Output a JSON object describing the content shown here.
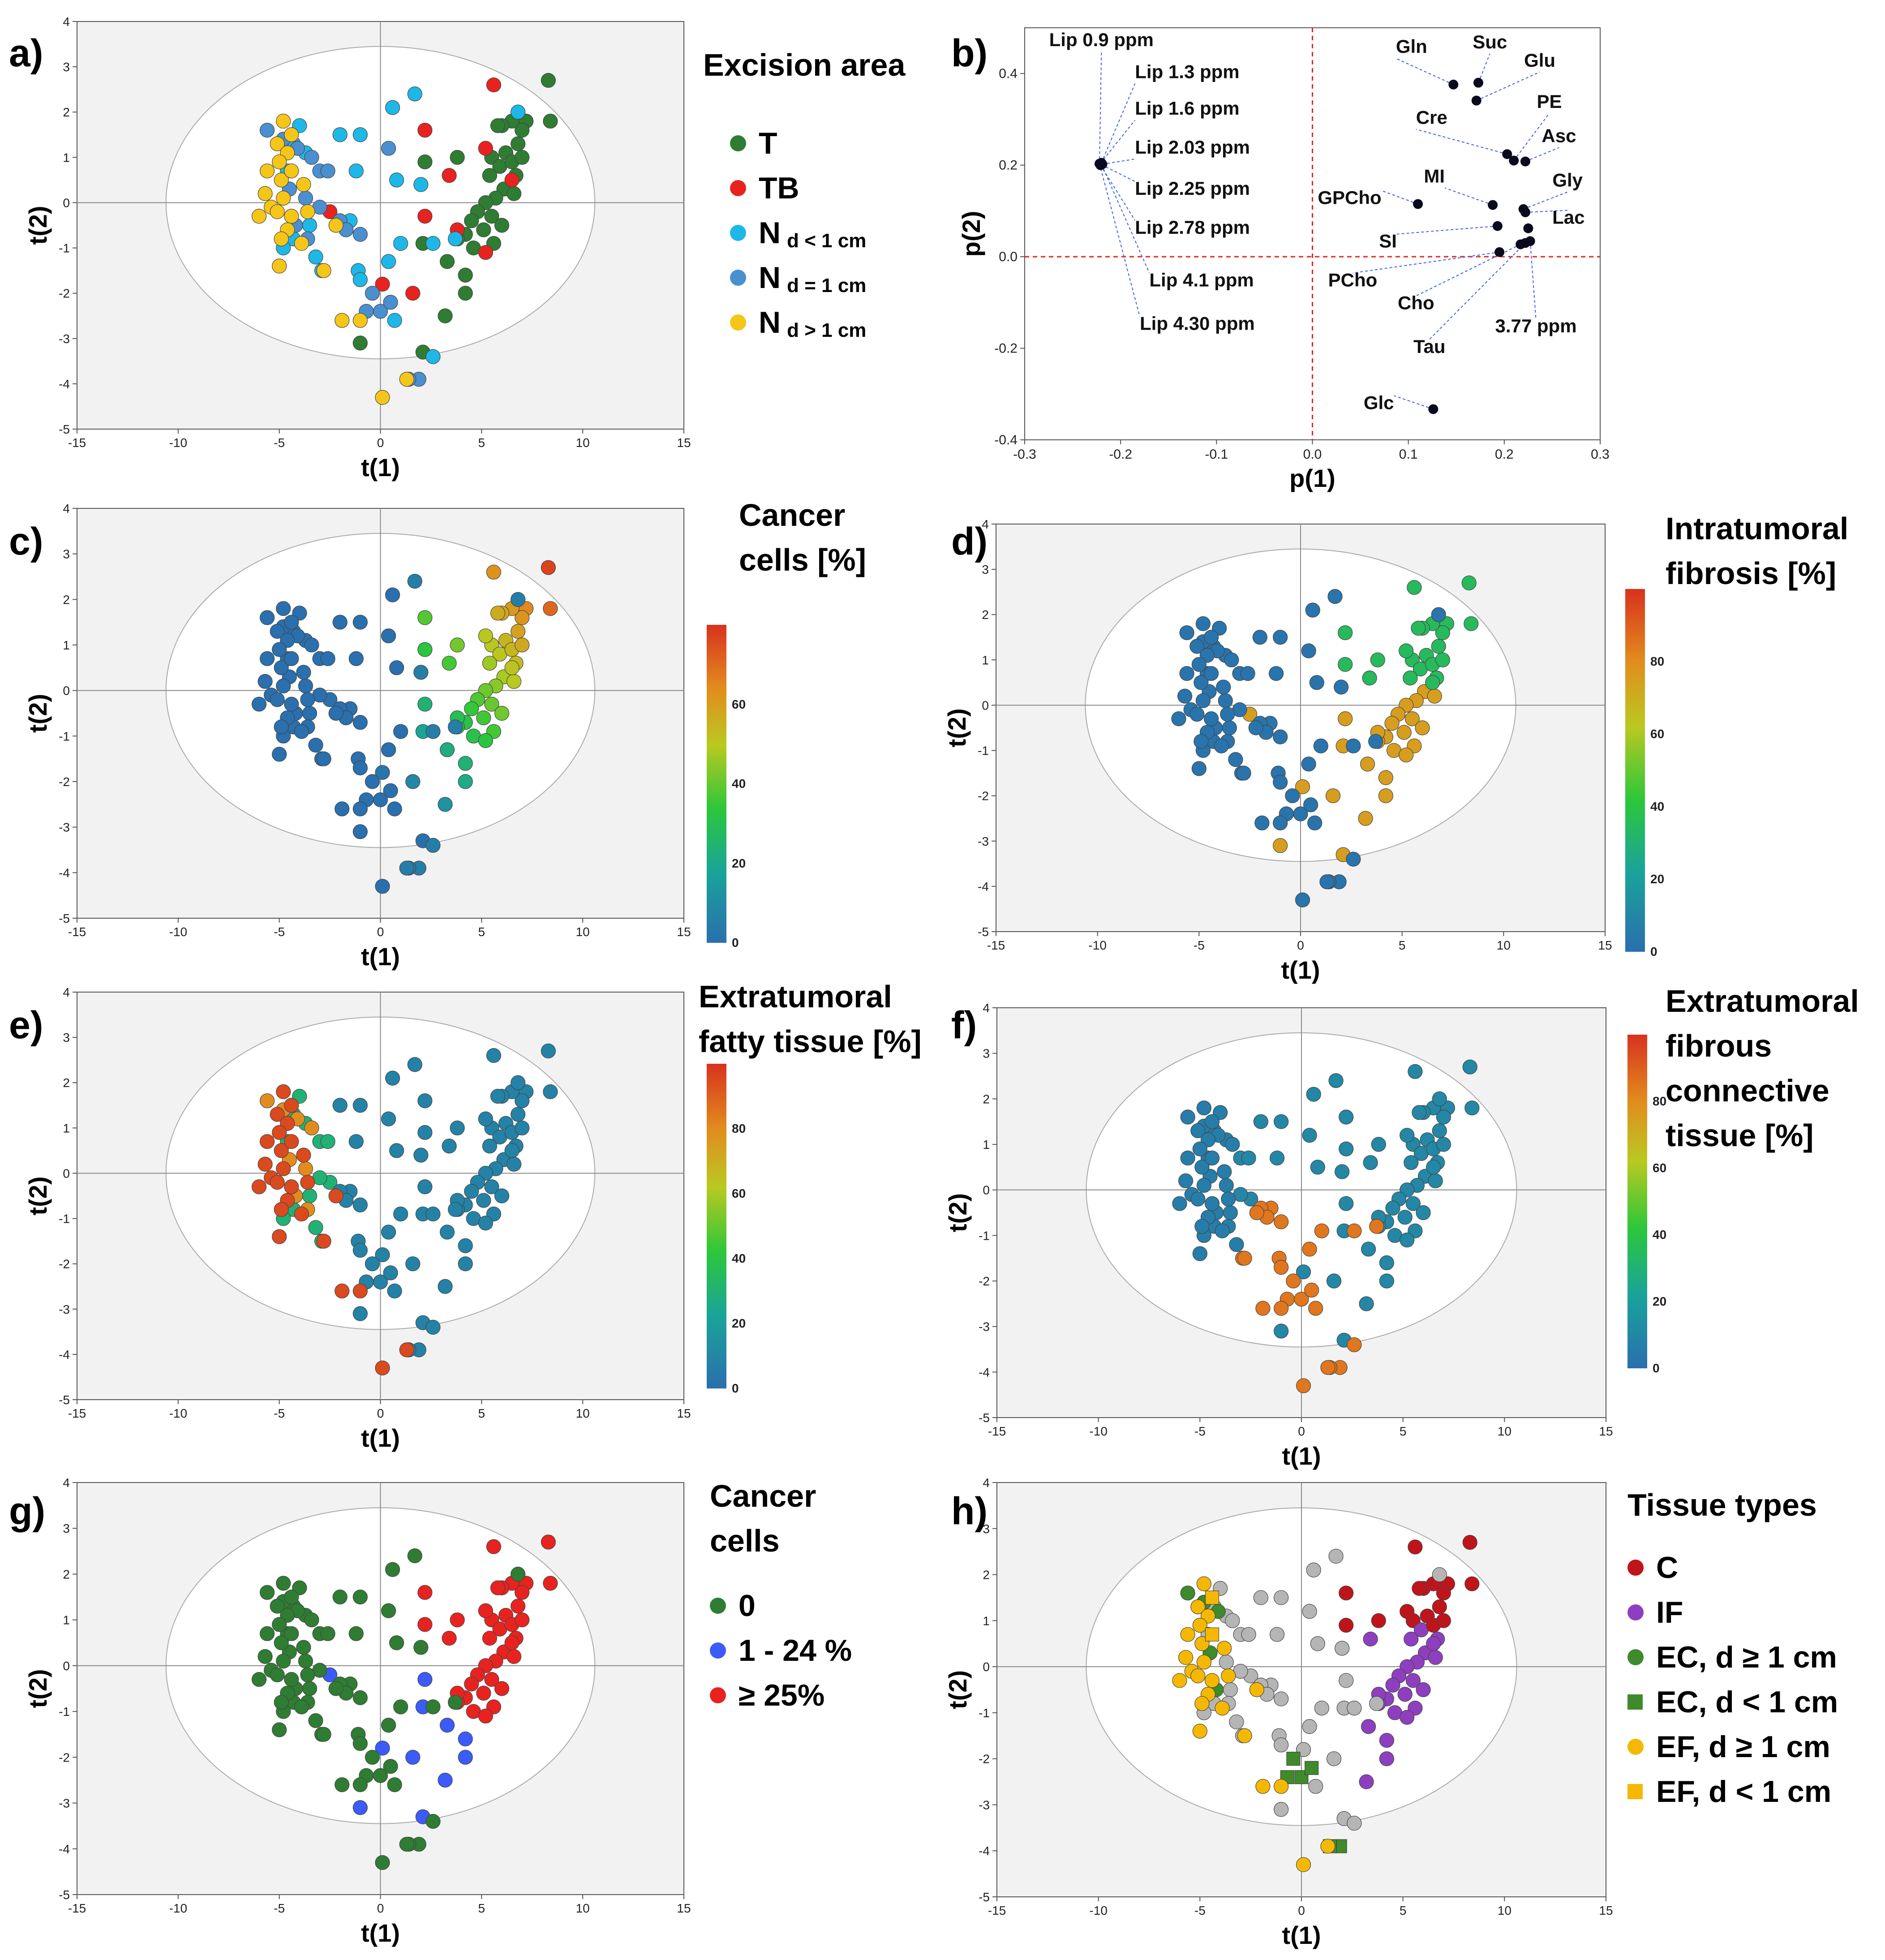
{
  "colors": {
    "T": "#2e7d32",
    "TB": "#e8231f",
    "Nlt1": "#1db8e8",
    "Neq1": "#4a8fd0",
    "Ngt1": "#f5c518",
    "g0": "#2e7d32",
    "g1": "#3b5bfa",
    "g25": "#e8231f",
    "C": "#c0141b",
    "IF": "#8e3fbf",
    "EC": "#3f8a2b",
    "EF": "#f5b800",
    "other": "#b5b5b5"
  },
  "panels": {
    "a": {
      "label": "a)",
      "legend_title": "Excision area",
      "items": [
        {
          "main": "T",
          "sub": ""
        },
        {
          "main": "TB",
          "sub": ""
        },
        {
          "main": "N",
          "sub": "d < 1 cm"
        },
        {
          "main": "N",
          "sub": "d = 1 cm"
        },
        {
          "main": "N",
          "sub": "d > 1 cm"
        }
      ]
    },
    "b": {
      "label": "b)"
    },
    "c": {
      "label": "c)",
      "legend_title": "Cancer\ncells [%]"
    },
    "d": {
      "label": "d)",
      "legend_title": "Intratumoral\nfibrosis [%]"
    },
    "e": {
      "label": "e)",
      "legend_title": "Extratumoral\nfatty tissue [%]"
    },
    "f": {
      "label": "f)",
      "legend_title": "Extratumoral\nfibrous\nconnective\ntissue [%]"
    },
    "g": {
      "label": "g)",
      "legend_title": "Cancer\ncells",
      "items": [
        "0",
        "1 - 24 %",
        "≥ 25%"
      ]
    },
    "h": {
      "label": "h)",
      "legend_title": "Tissue types",
      "items": [
        "C",
        "IF",
        "EC, d ≥ 1 cm",
        "EC, d < 1 cm",
        "EF, d ≥ 1 cm",
        "EF, d < 1 cm"
      ]
    }
  },
  "chart_data": [
    {
      "id": "a",
      "type": "scatter",
      "title": "",
      "xlabel": "t(1)",
      "ylabel": "t(2)",
      "xlim": [
        -15,
        15
      ],
      "ylim": [
        -5,
        4
      ],
      "xticks": [
        -15,
        -10,
        -5,
        0,
        5,
        10,
        15
      ],
      "yticks": [
        -5,
        -4,
        -3,
        -2,
        -1,
        0,
        1,
        2,
        3,
        4
      ],
      "ellipse": {
        "rx": 10.6,
        "ry": 3.45
      },
      "series": [
        {
          "name": "T",
          "color_key": "T",
          "points": [
            [
              8.3,
              2.7
            ],
            [
              8.4,
              1.8
            ],
            [
              7.2,
              1.8
            ],
            [
              7.0,
              1.6
            ],
            [
              6.5,
              1.8
            ],
            [
              6.0,
              1.7
            ],
            [
              5.8,
              1.7
            ],
            [
              6.8,
              1.3
            ],
            [
              6.2,
              1.1
            ],
            [
              5.5,
              1.0
            ],
            [
              5.9,
              0.8
            ],
            [
              6.5,
              0.9
            ],
            [
              7.0,
              1.0
            ],
            [
              6.7,
              0.6
            ],
            [
              5.4,
              0.6
            ],
            [
              6.1,
              0.3
            ],
            [
              5.7,
              0.1
            ],
            [
              6.6,
              0.2
            ],
            [
              5.2,
              0.0
            ],
            [
              4.8,
              -0.2
            ],
            [
              5.5,
              -0.3
            ],
            [
              6.0,
              -0.5
            ],
            [
              4.5,
              -0.4
            ],
            [
              4.2,
              -0.7
            ],
            [
              5.1,
              -0.6
            ],
            [
              3.8,
              -0.8
            ],
            [
              4.6,
              -1.0
            ],
            [
              5.6,
              -0.9
            ],
            [
              2.2,
              0.9
            ],
            [
              2.1,
              -0.9
            ],
            [
              3.8,
              1.0
            ],
            [
              3.3,
              -1.3
            ],
            [
              4.2,
              -1.6
            ],
            [
              4.2,
              -2.0
            ],
            [
              3.2,
              -2.5
            ],
            [
              -1.0,
              -3.1
            ],
            [
              2.1,
              -3.3
            ]
          ]
        },
        {
          "name": "TB",
          "color_key": "TB",
          "points": [
            [
              5.6,
              2.6
            ],
            [
              2.2,
              1.6
            ],
            [
              5.2,
              1.2
            ],
            [
              6.5,
              0.5
            ],
            [
              3.4,
              0.6
            ],
            [
              2.2,
              -0.3
            ],
            [
              3.8,
              -0.6
            ],
            [
              5.2,
              -1.1
            ],
            [
              0.1,
              -1.8
            ],
            [
              1.6,
              -2.0
            ],
            [
              -2.5,
              -0.2
            ]
          ]
        },
        {
          "name": "N d<1",
          "color_key": "Nlt1",
          "points": [
            [
              1.7,
              2.4
            ],
            [
              0.6,
              2.1
            ],
            [
              -4.0,
              1.7
            ],
            [
              -2.0,
              1.5
            ],
            [
              -1.0,
              1.5
            ],
            [
              -4.3,
              1.3
            ],
            [
              -3.7,
              1.1
            ],
            [
              -1.2,
              0.7
            ],
            [
              2.0,
              0.4
            ],
            [
              0.8,
              0.5
            ],
            [
              -4.6,
              0.7
            ],
            [
              -3.5,
              -0.5
            ],
            [
              -1.5,
              -0.4
            ],
            [
              -4.3,
              -0.8
            ],
            [
              1.0,
              -0.9
            ],
            [
              -3.2,
              -1.2
            ],
            [
              2.6,
              -0.9
            ],
            [
              3.7,
              -0.8
            ],
            [
              -4.8,
              -1.0
            ],
            [
              0.4,
              -1.3
            ],
            [
              -2.9,
              -1.5
            ],
            [
              -1.1,
              -1.5
            ],
            [
              -1.0,
              -1.7
            ],
            [
              0.7,
              -2.6
            ],
            [
              2.6,
              -3.4
            ],
            [
              6.8,
              2.0
            ]
          ]
        },
        {
          "name": "N d=1",
          "color_key": "Neq1",
          "points": [
            [
              -5.6,
              1.6
            ],
            [
              -4.8,
              1.4
            ],
            [
              -4.1,
              1.2
            ],
            [
              -3.4,
              1.0
            ],
            [
              -3.0,
              0.7
            ],
            [
              -2.6,
              0.7
            ],
            [
              -4.5,
              0.3
            ],
            [
              -3.7,
              0.1
            ],
            [
              -3.0,
              -0.1
            ],
            [
              -4.2,
              -0.5
            ],
            [
              -2.0,
              -0.4
            ],
            [
              -1.7,
              -0.6
            ],
            [
              -3.6,
              -0.8
            ],
            [
              0.4,
              1.2
            ],
            [
              -1.0,
              -0.7
            ],
            [
              -0.4,
              -2.0
            ],
            [
              -0.7,
              -2.4
            ],
            [
              0.0,
              -2.4
            ],
            [
              0.5,
              -2.2
            ],
            [
              1.9,
              -3.9
            ],
            [
              1.4,
              -3.9
            ]
          ]
        },
        {
          "name": "N d>1",
          "color_key": "Ngt1",
          "points": [
            [
              -4.8,
              1.8
            ],
            [
              -4.4,
              1.5
            ],
            [
              -5.1,
              1.3
            ],
            [
              -4.6,
              1.1
            ],
            [
              -5.0,
              0.9
            ],
            [
              -5.6,
              0.7
            ],
            [
              -4.9,
              0.5
            ],
            [
              -4.4,
              0.7
            ],
            [
              -3.8,
              0.4
            ],
            [
              -5.7,
              0.2
            ],
            [
              -5.4,
              -0.1
            ],
            [
              -4.8,
              0.1
            ],
            [
              -4.4,
              -0.3
            ],
            [
              -3.6,
              -0.2
            ],
            [
              -6.0,
              -0.3
            ],
            [
              -5.1,
              -0.2
            ],
            [
              -4.6,
              -0.6
            ],
            [
              -4.9,
              -0.8
            ],
            [
              -3.9,
              -0.9
            ],
            [
              -5.0,
              -1.4
            ],
            [
              -2.8,
              -1.5
            ],
            [
              -1.9,
              -2.6
            ],
            [
              -1.0,
              -2.6
            ],
            [
              0.1,
              -4.3
            ],
            [
              1.3,
              -3.9
            ],
            [
              -2.2,
              -0.5
            ]
          ]
        }
      ]
    },
    {
      "id": "b",
      "type": "scatter",
      "title": "",
      "xlabel": "p(1)",
      "ylabel": "p(2)",
      "xlim": [
        -0.3,
        0.3
      ],
      "ylim": [
        -0.4,
        0.5
      ],
      "xticks": [
        -0.3,
        -0.2,
        -0.1,
        0.0,
        0.1,
        0.2,
        0.3
      ],
      "yticks": [
        -0.4,
        -0.2,
        0.0,
        0.2,
        0.4
      ],
      "xtick_labels": [
        "-0.3",
        "-0.2",
        "-0.1",
        "0.0",
        "0.1",
        "0.2",
        "0.3"
      ],
      "ytick_labels": [
        "-0.4",
        "-0.2",
        "0.0",
        "0.2",
        "0.4"
      ],
      "reference_lines": {
        "x": 0.0,
        "y": 0.0
      },
      "points": [
        {
          "x": -0.222,
          "y": 0.203,
          "label": "Lip 0.9 ppm",
          "lx": -0.22,
          "ly": 0.46,
          "anchor": "middle"
        },
        {
          "x": -0.22,
          "y": 0.205,
          "label": "Lip 1.3 ppm",
          "lx": -0.185,
          "ly": 0.39,
          "anchor": "start"
        },
        {
          "x": -0.221,
          "y": 0.204,
          "label": "Lip 1.6 ppm",
          "lx": -0.185,
          "ly": 0.31,
          "anchor": "start"
        },
        {
          "x": -0.219,
          "y": 0.202,
          "label": "Lip 2.03 ppm",
          "lx": -0.185,
          "ly": 0.225,
          "anchor": "start"
        },
        {
          "x": -0.22,
          "y": 0.201,
          "label": "Lip 2.25 ppm",
          "lx": -0.185,
          "ly": 0.135,
          "anchor": "start"
        },
        {
          "x": -0.221,
          "y": 0.2,
          "label": "Lip 2.78 ppm",
          "lx": -0.185,
          "ly": 0.05,
          "anchor": "start"
        },
        {
          "x": -0.22,
          "y": 0.202,
          "label": "Lip 4.1 ppm",
          "lx": -0.17,
          "ly": -0.065,
          "anchor": "start"
        },
        {
          "x": -0.222,
          "y": 0.203,
          "label": "Lip 4.30 ppm",
          "lx": -0.18,
          "ly": -0.16,
          "anchor": "start"
        },
        {
          "x": 0.147,
          "y": 0.376,
          "label": "Gln",
          "lx": 0.087,
          "ly": 0.445,
          "anchor": "start"
        },
        {
          "x": 0.173,
          "y": 0.38,
          "label": "Suc",
          "lx": 0.185,
          "ly": 0.455,
          "anchor": "middle"
        },
        {
          "x": 0.171,
          "y": 0.341,
          "label": "Glu",
          "lx": 0.237,
          "ly": 0.415,
          "anchor": "middle"
        },
        {
          "x": 0.203,
          "y": 0.224,
          "label": "Cre",
          "lx": 0.108,
          "ly": 0.29,
          "anchor": "start"
        },
        {
          "x": 0.21,
          "y": 0.21,
          "label": "PE",
          "lx": 0.247,
          "ly": 0.325,
          "anchor": "middle"
        },
        {
          "x": 0.222,
          "y": 0.208,
          "label": "Asc",
          "lx": 0.257,
          "ly": 0.25,
          "anchor": "middle"
        },
        {
          "x": 0.11,
          "y": 0.115,
          "label": "GPCho",
          "lx": 0.072,
          "ly": 0.115,
          "anchor": "end"
        },
        {
          "x": 0.188,
          "y": 0.113,
          "label": "MI",
          "lx": 0.138,
          "ly": 0.162,
          "anchor": "end"
        },
        {
          "x": 0.22,
          "y": 0.104,
          "label": "Gly",
          "lx": 0.266,
          "ly": 0.153,
          "anchor": "middle"
        },
        {
          "x": 0.222,
          "y": 0.097,
          "label": "Lac",
          "lx": 0.267,
          "ly": 0.072,
          "anchor": "middle"
        },
        {
          "x": 0.193,
          "y": 0.067,
          "label": "SI",
          "lx": 0.088,
          "ly": 0.02,
          "anchor": "end"
        },
        {
          "x": 0.225,
          "y": 0.062,
          "label": "",
          "lx": 0.225,
          "ly": 0.062,
          "anchor": "start"
        },
        {
          "x": 0.195,
          "y": 0.01,
          "label": "PCho",
          "lx": 0.042,
          "ly": -0.065,
          "anchor": "middle"
        },
        {
          "x": 0.217,
          "y": 0.027,
          "label": "Cho",
          "lx": 0.108,
          "ly": -0.115,
          "anchor": "middle"
        },
        {
          "x": 0.222,
          "y": 0.03,
          "label": "Tau",
          "lx": 0.122,
          "ly": -0.21,
          "anchor": "middle"
        },
        {
          "x": 0.227,
          "y": 0.034,
          "label": "3.77 ppm",
          "lx": 0.233,
          "ly": -0.165,
          "anchor": "middle"
        },
        {
          "x": 0.126,
          "y": -0.333,
          "label": "Glc",
          "lx": 0.085,
          "ly": -0.333,
          "anchor": "end"
        }
      ]
    },
    {
      "id": "c",
      "type": "scatter",
      "color_mode": "continuous",
      "value_key": "cancer",
      "xlabel": "t(1)",
      "ylabel": "t(2)",
      "xlim": [
        -15,
        15
      ],
      "ylim": [
        -5,
        4
      ],
      "colorbar_ticks": [
        0,
        20,
        40,
        60
      ],
      "colorbar_max": 80
    },
    {
      "id": "d",
      "type": "scatter",
      "color_mode": "continuous",
      "value_key": "fibrosis",
      "xlabel": "t(1)",
      "ylabel": "t(2)",
      "xlim": [
        -15,
        15
      ],
      "ylim": [
        -5,
        4
      ],
      "colorbar_ticks": [
        0,
        20,
        40,
        60,
        80
      ],
      "colorbar_max": 100
    },
    {
      "id": "e",
      "type": "scatter",
      "color_mode": "continuous",
      "value_key": "fat",
      "xlabel": "t(1)",
      "ylabel": "t(2)",
      "xlim": [
        -15,
        15
      ],
      "ylim": [
        -5,
        4
      ],
      "colorbar_ticks": [
        0,
        20,
        40,
        60,
        80
      ],
      "colorbar_max": 100
    },
    {
      "id": "f",
      "type": "scatter",
      "color_mode": "continuous",
      "value_key": "fibrous",
      "xlabel": "t(1)",
      "ylabel": "t(2)",
      "xlim": [
        -15,
        15
      ],
      "ylim": [
        -5,
        4
      ],
      "colorbar_ticks": [
        0,
        20,
        40,
        60,
        80
      ],
      "colorbar_max": 100
    },
    {
      "id": "g",
      "type": "scatter",
      "color_mode": "category",
      "categories": [
        "0",
        "1 - 24 %",
        "≥ 25%"
      ],
      "xlabel": "t(1)",
      "ylabel": "t(2)",
      "xlim": [
        -15,
        15
      ],
      "ylim": [
        -5,
        4
      ]
    },
    {
      "id": "h",
      "type": "scatter",
      "color_mode": "category",
      "categories": [
        "C",
        "IF",
        "EC, d ≥ 1 cm",
        "EC, d < 1 cm",
        "EF, d ≥ 1 cm",
        "EF, d < 1 cm"
      ],
      "xlabel": "t(1)",
      "ylabel": "t(2)",
      "xlim": [
        -15,
        15
      ],
      "ylim": [
        -5,
        4
      ]
    }
  ]
}
